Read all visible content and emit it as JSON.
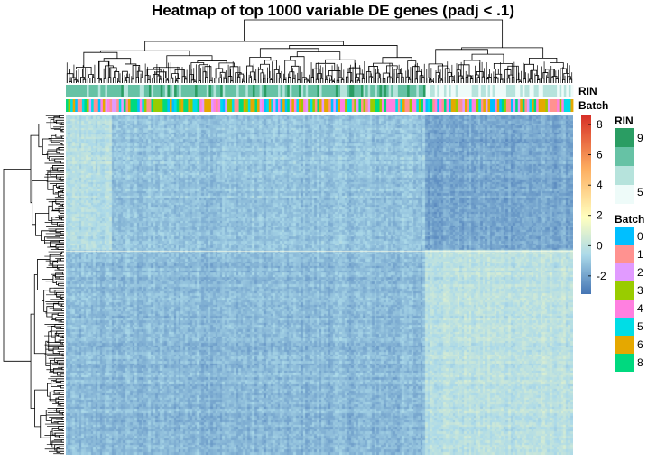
{
  "chart_data": {
    "type": "heatmap",
    "title": "Heatmap of top 1000 variable DE genes (padj < .1)",
    "rows": 1000,
    "columns_annotation": [
      {
        "name": "RIN",
        "legend_title": "RIN",
        "legend_labels": [
          "9",
          "5"
        ],
        "colors": [
          "#2a9d63",
          "#66c2a5",
          "#b6e3dc",
          "#eefbf9"
        ]
      },
      {
        "name": "Batch",
        "legend_title": "Batch",
        "levels": [
          "0",
          "1",
          "2",
          "3",
          "4",
          "5",
          "6",
          "8"
        ],
        "colors": [
          "#00bfff",
          "#ff9290",
          "#e19bff",
          "#99cc00",
          "#ff80e0",
          "#00dde6",
          "#e5a800",
          "#00d97f"
        ]
      }
    ],
    "color_scale": {
      "ticks": [
        8,
        6,
        4,
        2,
        0,
        -2
      ],
      "min": -3.2,
      "max": 8.6,
      "colors": [
        "#4575b4",
        "#abd9e9",
        "#ffffbf",
        "#fdae61",
        "#d73027"
      ]
    },
    "row_clusters": [
      {
        "label": "upper",
        "fraction": 0.4
      },
      {
        "label": "lower",
        "fraction": 0.6
      }
    ],
    "column_clusters": [
      {
        "label": "left",
        "fraction": 0.71
      },
      {
        "label": "right",
        "fraction": 0.29
      }
    ]
  }
}
